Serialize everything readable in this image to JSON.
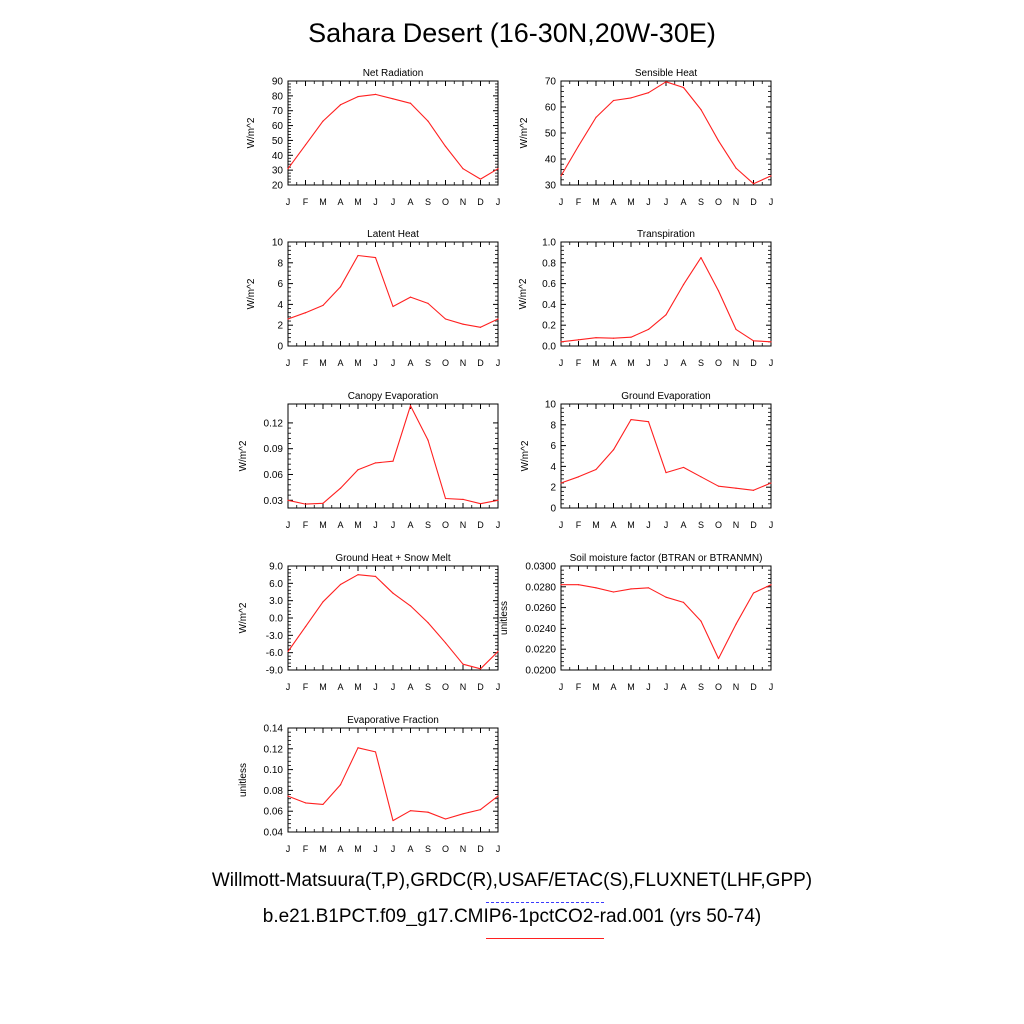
{
  "title": "Sahara Desert (16-30N,20W-30E)",
  "legend": {
    "observations": "Willmott-Matsuura(T,P),GRDC(R),USAF/ETAC(S),FLUXNET(LHF,GPP)",
    "model": "b.e21.B1PCT.f09_g17.CMIP6-1pctCO2-rad.001 (yrs 50-74)",
    "observations_color": "#3b3bff",
    "model_color": "#ff2020"
  },
  "months": [
    "J",
    "F",
    "M",
    "A",
    "M",
    "J",
    "J",
    "A",
    "S",
    "O",
    "N",
    "D",
    "J"
  ],
  "chart_data": [
    {
      "type": "line",
      "title": "Net Radiation",
      "ylabel": "W/m^2",
      "ylim": [
        20,
        90
      ],
      "yticks": [
        20,
        30,
        40,
        50,
        60,
        70,
        80,
        90
      ],
      "ytick_labels": [
        "20",
        "30",
        "40",
        "50",
        "60",
        "70",
        "80",
        "90"
      ],
      "series": [
        {
          "values": [
            31,
            47,
            63,
            74,
            79.5,
            81,
            78,
            75,
            63,
            46,
            31,
            24,
            31
          ]
        }
      ]
    },
    {
      "type": "line",
      "title": "Sensible Heat",
      "ylabel": "W/m^2",
      "ylim": [
        30,
        70
      ],
      "yticks": [
        30,
        40,
        50,
        60,
        70
      ],
      "ytick_labels": [
        "30",
        "40",
        "50",
        "60",
        "70"
      ],
      "series": [
        {
          "values": [
            33.5,
            45,
            56,
            62.5,
            63.5,
            65.5,
            69.7,
            67.5,
            59,
            47,
            36.5,
            30.5,
            33.5
          ]
        }
      ]
    },
    {
      "type": "line",
      "title": "Latent Heat",
      "ylabel": "W/m^2",
      "ylim": [
        0,
        10
      ],
      "yticks": [
        0,
        2,
        4,
        6,
        8,
        10
      ],
      "ytick_labels": [
        "0",
        "2",
        "4",
        "6",
        "8",
        "10"
      ],
      "series": [
        {
          "values": [
            2.6,
            3.2,
            3.9,
            5.7,
            8.7,
            8.5,
            3.8,
            4.7,
            4.1,
            2.6,
            2.1,
            1.8,
            2.6
          ]
        }
      ]
    },
    {
      "type": "line",
      "title": "Transpiration",
      "ylabel": "W/m^2",
      "ylim": [
        0,
        1
      ],
      "yticks": [
        0,
        0.2,
        0.4,
        0.6,
        0.8,
        1.0
      ],
      "ytick_labels": [
        "0.0",
        "0.2",
        "0.4",
        "0.6",
        "0.8",
        "1.0"
      ],
      "series": [
        {
          "values": [
            0.04,
            0.06,
            0.08,
            0.075,
            0.085,
            0.16,
            0.3,
            0.59,
            0.85,
            0.53,
            0.16,
            0.05,
            0.04
          ]
        }
      ]
    },
    {
      "type": "line",
      "title": "Canopy Evaporation",
      "ylabel": "W/m^2",
      "ylim": [
        0.021,
        0.142
      ],
      "yticks": [
        0.03,
        0.06,
        0.09,
        0.12
      ],
      "ytick_labels": [
        "0.03",
        "0.06",
        "0.09",
        "0.12"
      ],
      "series": [
        {
          "values": [
            0.03,
            0.0255,
            0.0265,
            0.044,
            0.0655,
            0.0735,
            0.0755,
            0.14,
            0.1,
            0.032,
            0.031,
            0.026,
            0.03
          ]
        }
      ]
    },
    {
      "type": "line",
      "title": "Ground Evaporation",
      "ylabel": "W/m^2",
      "ylim": [
        0,
        10
      ],
      "yticks": [
        0,
        2,
        4,
        6,
        8,
        10
      ],
      "ytick_labels": [
        "0",
        "2",
        "4",
        "6",
        "8",
        "10"
      ],
      "series": [
        {
          "values": [
            2.4,
            3,
            3.7,
            5.6,
            8.5,
            8.3,
            3.4,
            3.9,
            3,
            2.1,
            1.9,
            1.7,
            2.4
          ]
        }
      ]
    },
    {
      "type": "line",
      "title": "Ground Heat + Snow Melt",
      "ylabel": "W/m^2",
      "ylim": [
        -9,
        9
      ],
      "yticks": [
        -9,
        -6,
        -3,
        0,
        3,
        6,
        9
      ],
      "ytick_labels": [
        "-9.0",
        "-6.0",
        "-3.0",
        "0.0",
        "3.0",
        "6.0",
        "9.0"
      ],
      "series": [
        {
          "values": [
            -5.8,
            -1.5,
            2.8,
            5.8,
            7.5,
            7.2,
            4.3,
            2.1,
            -0.8,
            -4.3,
            -8,
            -8.8,
            -5.8
          ]
        }
      ]
    },
    {
      "type": "line",
      "title": "Soil moisture factor (BTRAN or BTRANMN)",
      "ylabel": "unitless",
      "ylim": [
        0.02,
        0.03
      ],
      "yticks": [
        0.02,
        0.022,
        0.024,
        0.026,
        0.028,
        0.03
      ],
      "ytick_labels": [
        "0.0200",
        "0.0220",
        "0.0240",
        "0.0260",
        "0.0280",
        "0.0300"
      ],
      "series": [
        {
          "values": [
            0.0282,
            0.0282,
            0.0279,
            0.0275,
            0.0278,
            0.0279,
            0.027,
            0.0265,
            0.0247,
            0.0211,
            0.0244,
            0.0274,
            0.0282
          ]
        }
      ]
    },
    {
      "type": "line",
      "title": "Evaporative Fraction",
      "ylabel": "unitless",
      "ylim": [
        0.04,
        0.14
      ],
      "yticks": [
        0.04,
        0.06,
        0.08,
        0.1,
        0.12,
        0.14
      ],
      "ytick_labels": [
        "0.04",
        "0.06",
        "0.08",
        "0.10",
        "0.12",
        "0.14"
      ],
      "series": [
        {
          "values": [
            0.0745,
            0.068,
            0.0665,
            0.0855,
            0.121,
            0.117,
            0.051,
            0.0605,
            0.059,
            0.0525,
            0.0575,
            0.0615,
            0.0745
          ]
        }
      ]
    }
  ]
}
